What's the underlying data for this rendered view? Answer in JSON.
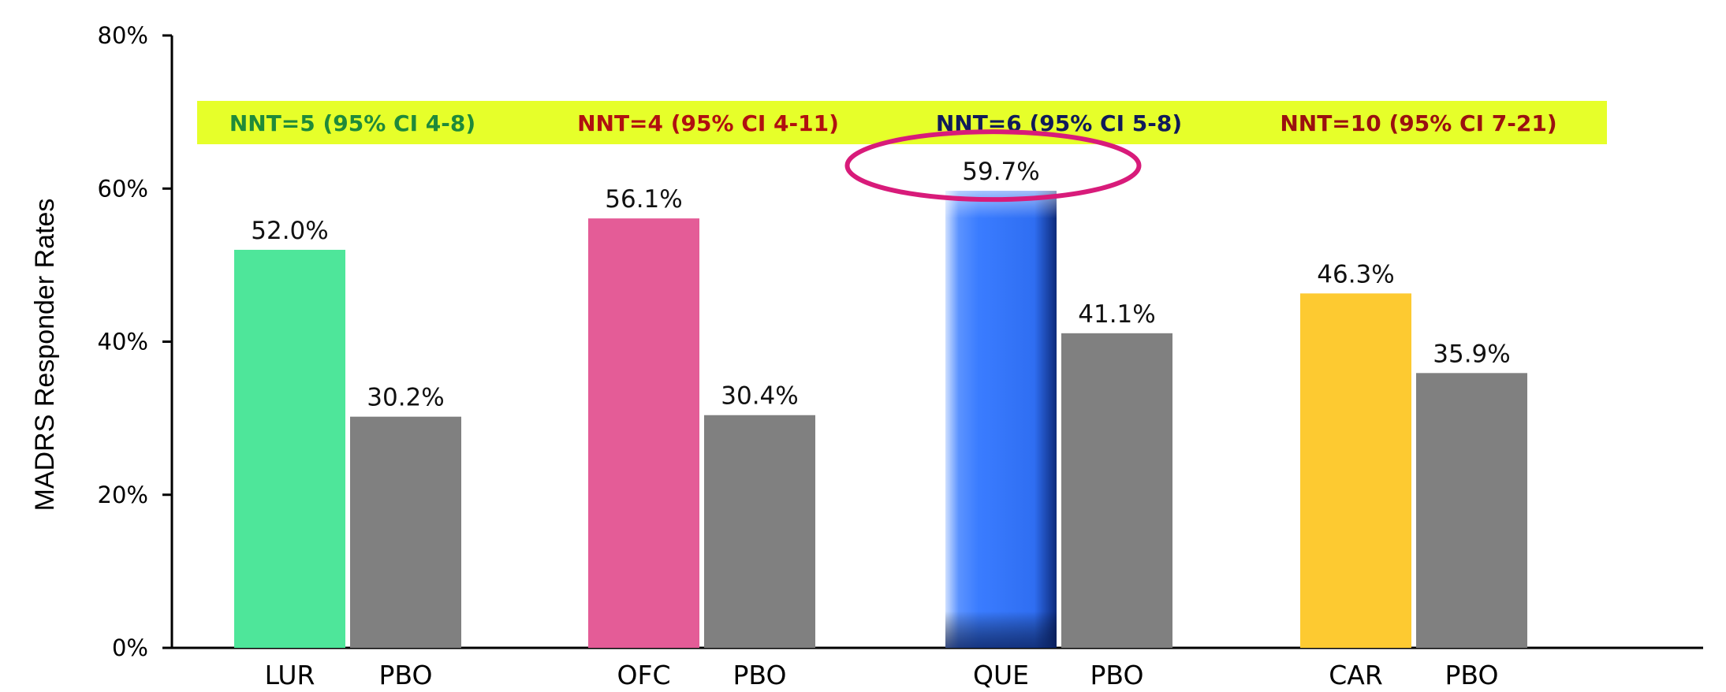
{
  "chart_data": {
    "type": "bar",
    "title": "",
    "xlabel": "",
    "ylabel": "MADRS Responder Rates",
    "ylim": [
      0,
      80
    ],
    "yticks": [
      "0%",
      "20%",
      "40%",
      "60%",
      "80%"
    ],
    "grid": false,
    "groups": [
      {
        "nnt": "NNT=5 (95% CI 4-8)",
        "nnt_color": "#1f8a3a",
        "bars": [
          {
            "label": "LUR",
            "value": 52.0,
            "value_label": "52.0%",
            "color": "#4ee69a"
          },
          {
            "label": "PBO",
            "value": 30.2,
            "value_label": "30.2%",
            "color": "#808080"
          }
        ]
      },
      {
        "nnt": "NNT=4 (95% CI 4-11)",
        "nnt_color": "#b01010",
        "bars": [
          {
            "label": "OFC",
            "value": 56.1,
            "value_label": "56.1%",
            "color": "#e45c97"
          },
          {
            "label": "PBO",
            "value": 30.4,
            "value_label": "30.4%",
            "color": "#808080"
          }
        ]
      },
      {
        "nnt": "NNT=6 (95% CI 5-8)",
        "nnt_color": "#101a5a",
        "bars": [
          {
            "label": "QUE",
            "value": 59.7,
            "value_label": "59.7%",
            "color": "#3a7cff",
            "highlighted": true
          },
          {
            "label": "PBO",
            "value": 41.1,
            "value_label": "41.1%",
            "color": "#808080"
          }
        ]
      },
      {
        "nnt": "NNT=10 (95% CI 7-21)",
        "nnt_color": "#9a1010",
        "bars": [
          {
            "label": "CAR",
            "value": 46.3,
            "value_label": "46.3%",
            "color": "#fdca31"
          },
          {
            "label": "PBO",
            "value": 35.9,
            "value_label": "35.9%",
            "color": "#808080"
          }
        ]
      }
    ],
    "nnt_band_color": "#e6ff2a",
    "highlight_color": "#d81b7a"
  }
}
